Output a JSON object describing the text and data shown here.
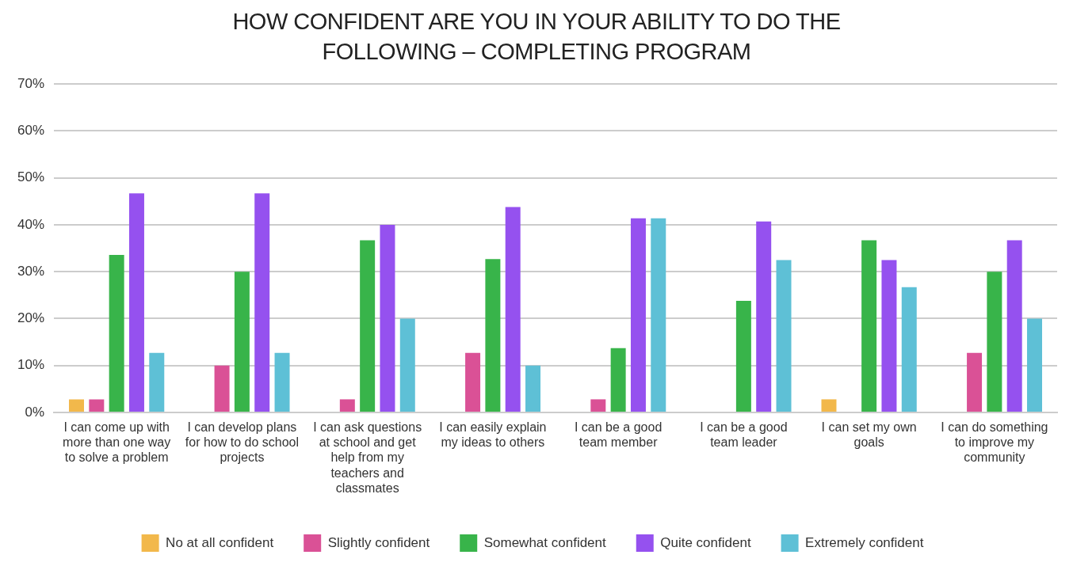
{
  "chart_data": {
    "type": "bar",
    "title": "HOW CONFIDENT ARE YOU IN YOUR ABILITY TO DO THE FOLLOWING – COMPLETING PROGRAM",
    "categories": [
      "I can come up with more than one way to solve a problem",
      "I can develop plans for how to do school projects",
      "I can ask questions at school and get help from my teachers and classmates",
      "I can easily explain my ideas to others",
      "I can be a good team member",
      "I can be a good team leader",
      "I can set my own goals",
      "I can do something to improve my community"
    ],
    "series": [
      {
        "name": "No at all confident",
        "color": "#f2b84b",
        "values": [
          2.8,
          0,
          0,
          0,
          0,
          0,
          2.8,
          0
        ]
      },
      {
        "name": "Slightly confident",
        "color": "#da5196",
        "values": [
          2.8,
          10,
          2.8,
          12.7,
          2.8,
          0,
          0,
          12.7
        ]
      },
      {
        "name": "Somewhat confident",
        "color": "#38b44a",
        "values": [
          33.6,
          30,
          36.7,
          32.7,
          13.7,
          23.8,
          36.7,
          30
        ]
      },
      {
        "name": "Quite confident",
        "color": "#9551ef",
        "values": [
          46.7,
          46.7,
          40,
          43.8,
          41.4,
          40.7,
          32.5,
          36.7
        ]
      },
      {
        "name": "Extremely confident",
        "color": "#5ec0d6",
        "values": [
          12.7,
          12.7,
          20,
          10,
          41.4,
          32.5,
          26.7,
          20
        ]
      }
    ],
    "ylim": [
      0,
      70
    ],
    "yticks": [
      {
        "value": 0,
        "label": "0%"
      },
      {
        "value": 10,
        "label": "10%"
      },
      {
        "value": 20,
        "label": "20%"
      },
      {
        "value": 30,
        "label": "30%"
      },
      {
        "value": 40,
        "label": "40%"
      },
      {
        "value": 50,
        "label": "50%"
      },
      {
        "value": 60,
        "label": "60%"
      },
      {
        "value": 70,
        "label": "70%"
      }
    ],
    "grid": "y",
    "legend": "bottom"
  }
}
